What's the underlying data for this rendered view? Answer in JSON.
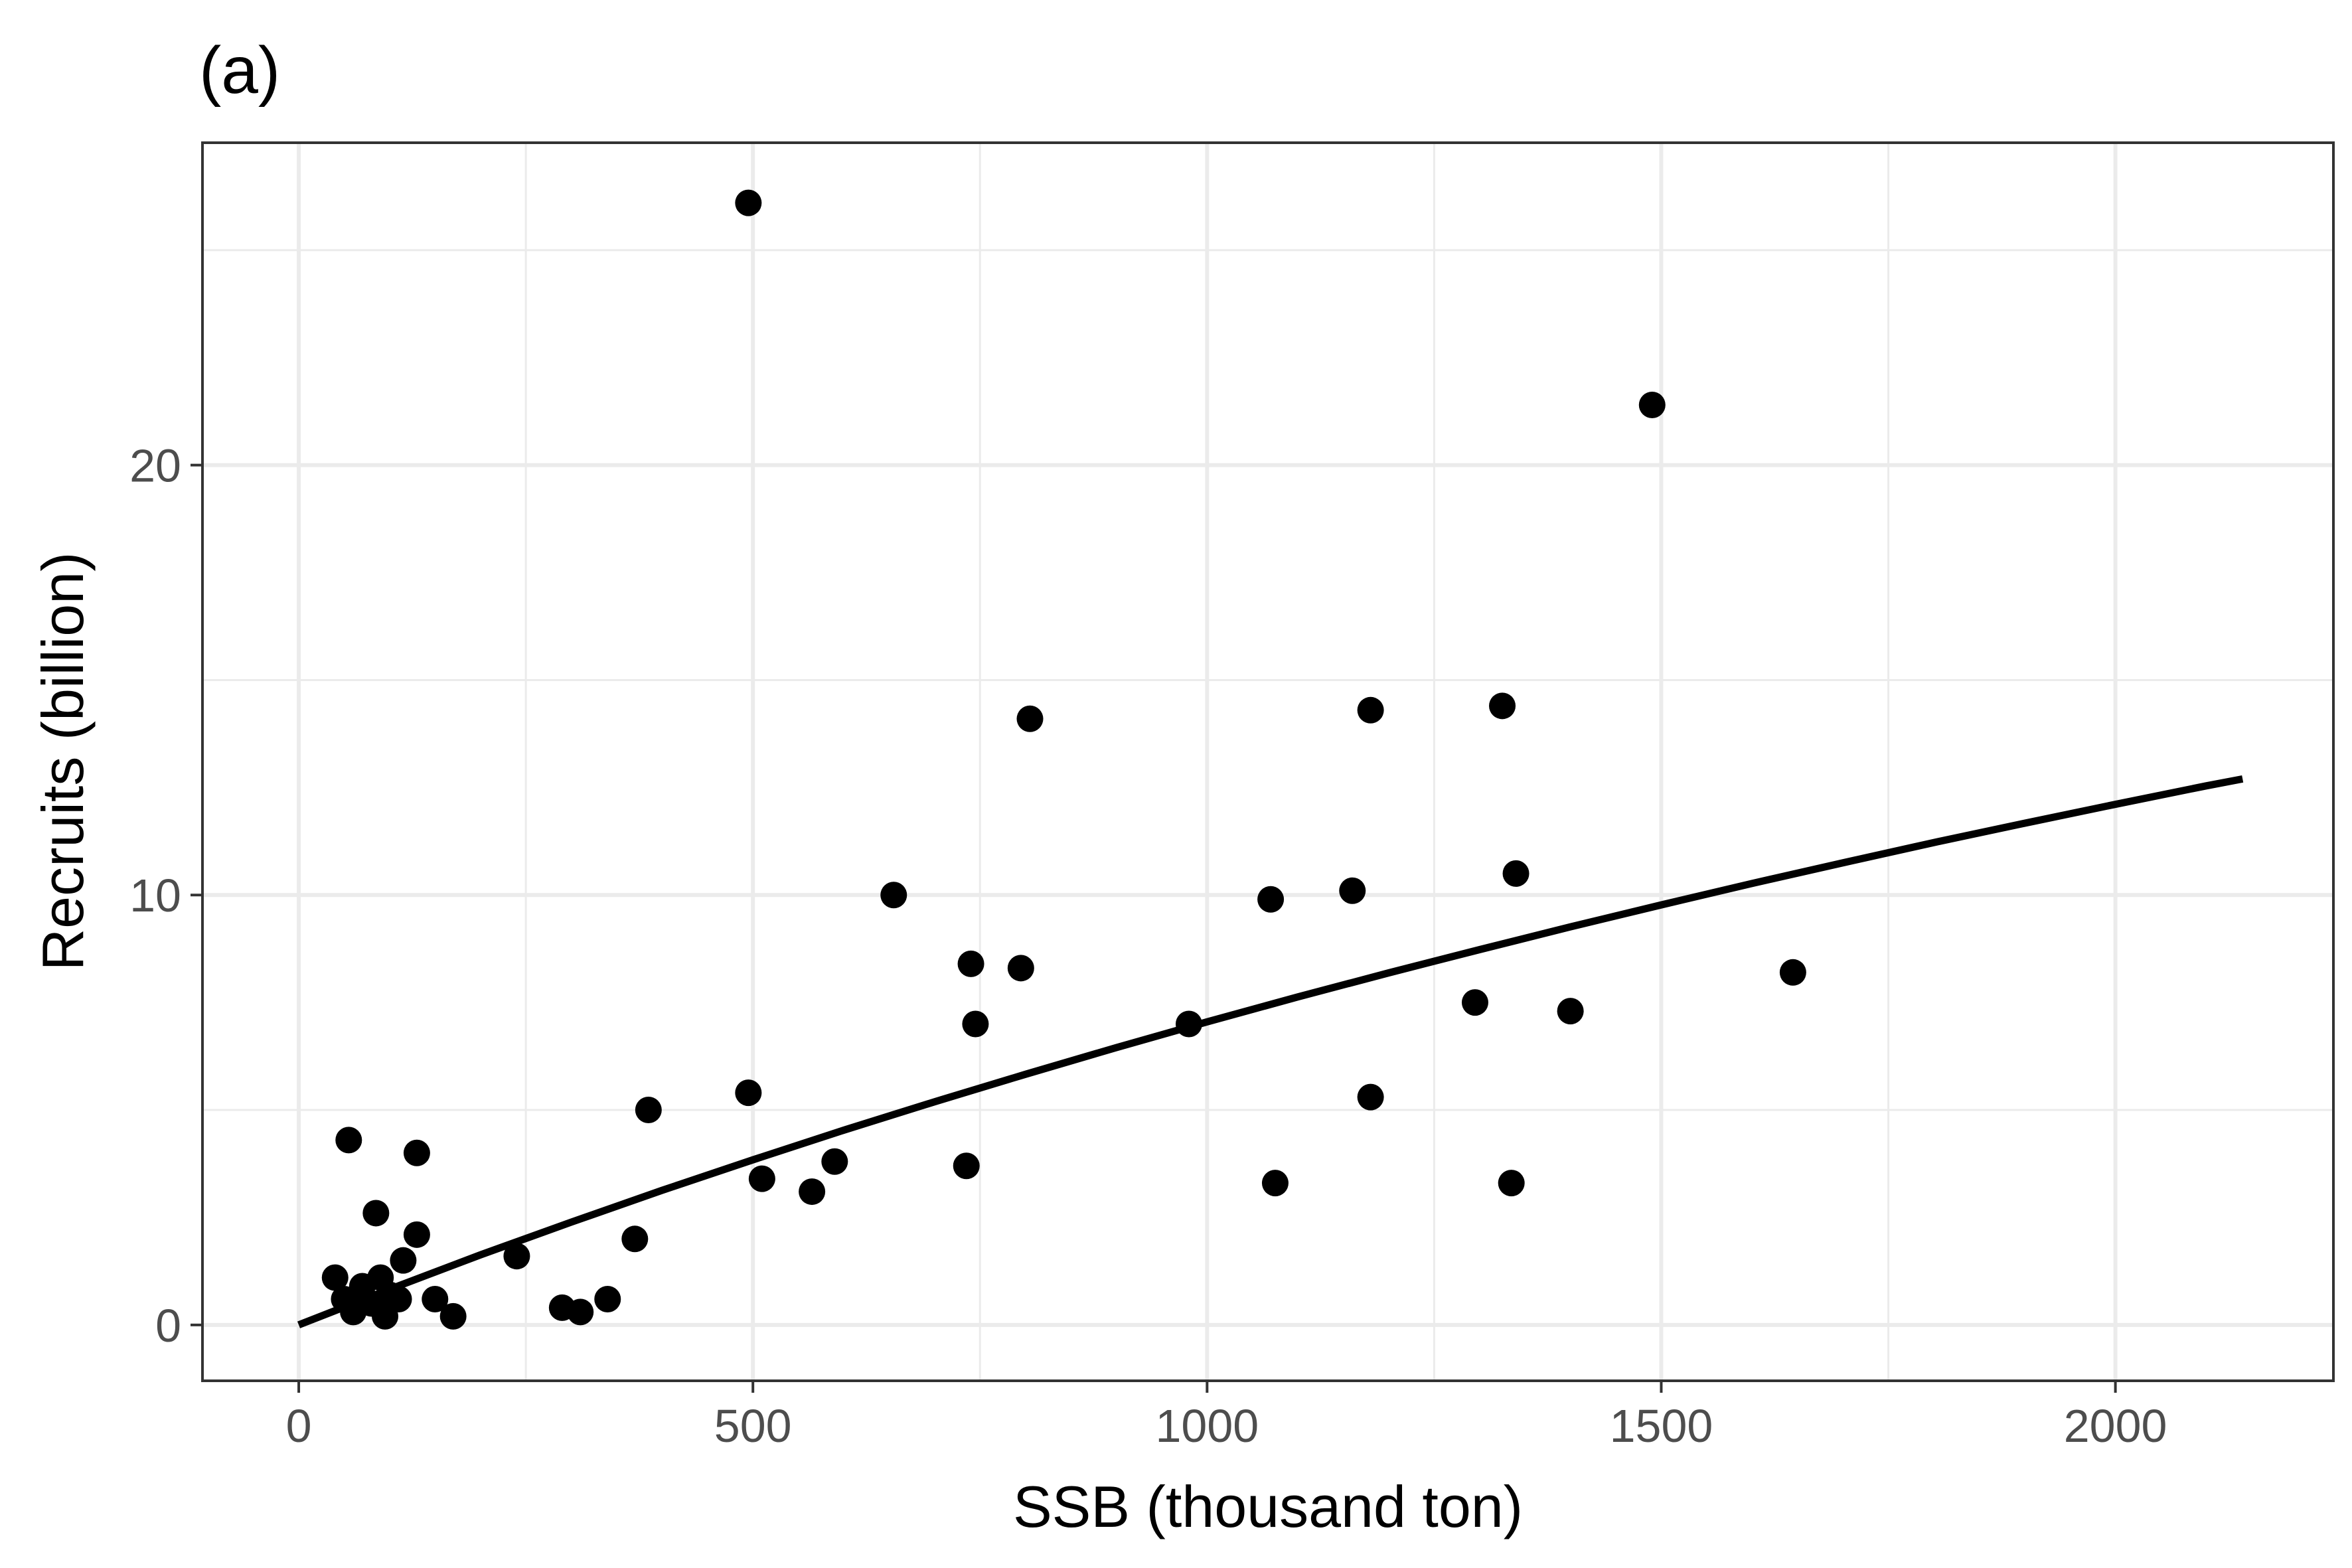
{
  "chart_data": {
    "type": "scatter",
    "title": "(a)",
    "xlabel": "SSB (thousand ton)",
    "ylabel": "Recruits (billion)",
    "xlim": [
      -106,
      2240
    ],
    "ylim": [
      -1.3,
      27.5
    ],
    "x_ticks": [
      0,
      500,
      1000,
      1500,
      2000
    ],
    "x_tick_labels": [
      "0",
      "500",
      "1000",
      "1500",
      "2000"
    ],
    "y_ticks": [
      0,
      10,
      20
    ],
    "y_tick_labels": [
      "0",
      "10",
      "20"
    ],
    "x_minor_grid": [
      250,
      750,
      1250,
      1750
    ],
    "y_minor_grid": [
      5,
      15,
      25
    ],
    "grid": true,
    "legend": "none",
    "colors": {
      "points": "#000000",
      "fit_line": "#000000",
      "grid": "#ebebeb",
      "panel_border": "#333333",
      "tick_text": "#4d4d4d"
    },
    "points": [
      {
        "x": 40,
        "y": 1.1
      },
      {
        "x": 55,
        "y": 4.3
      },
      {
        "x": 50,
        "y": 0.6
      },
      {
        "x": 60,
        "y": 0.3
      },
      {
        "x": 70,
        "y": 0.9
      },
      {
        "x": 80,
        "y": 0.5
      },
      {
        "x": 85,
        "y": 2.6
      },
      {
        "x": 90,
        "y": 1.1
      },
      {
        "x": 95,
        "y": 0.2
      },
      {
        "x": 100,
        "y": 0.7
      },
      {
        "x": 110,
        "y": 0.6
      },
      {
        "x": 115,
        "y": 1.5
      },
      {
        "x": 130,
        "y": 4.0
      },
      {
        "x": 130,
        "y": 2.1
      },
      {
        "x": 150,
        "y": 0.6
      },
      {
        "x": 170,
        "y": 0.2
      },
      {
        "x": 240,
        "y": 1.6
      },
      {
        "x": 290,
        "y": 0.4
      },
      {
        "x": 310,
        "y": 0.3
      },
      {
        "x": 340,
        "y": 0.6
      },
      {
        "x": 370,
        "y": 2.0
      },
      {
        "x": 385,
        "y": 5.0
      },
      {
        "x": 495,
        "y": 26.1
      },
      {
        "x": 495,
        "y": 5.4
      },
      {
        "x": 510,
        "y": 3.4
      },
      {
        "x": 565,
        "y": 3.1
      },
      {
        "x": 590,
        "y": 3.8
      },
      {
        "x": 655,
        "y": 10.0
      },
      {
        "x": 735,
        "y": 3.7
      },
      {
        "x": 740,
        "y": 8.4
      },
      {
        "x": 745,
        "y": 7.0
      },
      {
        "x": 795,
        "y": 8.3
      },
      {
        "x": 805,
        "y": 14.1
      },
      {
        "x": 980,
        "y": 7.0
      },
      {
        "x": 1070,
        "y": 9.9
      },
      {
        "x": 1075,
        "y": 3.3
      },
      {
        "x": 1160,
        "y": 10.1
      },
      {
        "x": 1180,
        "y": 14.3
      },
      {
        "x": 1180,
        "y": 5.3
      },
      {
        "x": 1295,
        "y": 7.5
      },
      {
        "x": 1325,
        "y": 14.4
      },
      {
        "x": 1335,
        "y": 3.3
      },
      {
        "x": 1340,
        "y": 10.5
      },
      {
        "x": 1400,
        "y": 7.3
      },
      {
        "x": 1490,
        "y": 21.4
      },
      {
        "x": 1645,
        "y": 8.2
      }
    ],
    "fit_line": {
      "x": [
        0,
        100,
        200,
        300,
        400,
        500,
        600,
        700,
        800,
        900,
        1000,
        1100,
        1200,
        1300,
        1400,
        1500,
        1600,
        1700,
        1800,
        1900,
        2000,
        2100,
        2140
      ],
      "y": [
        0,
        0.83,
        1.63,
        2.39,
        3.13,
        3.84,
        4.53,
        5.19,
        5.83,
        6.45,
        7.05,
        7.63,
        8.19,
        8.73,
        9.26,
        9.77,
        10.27,
        10.75,
        11.22,
        11.67,
        12.11,
        12.54,
        12.7
      ]
    }
  }
}
